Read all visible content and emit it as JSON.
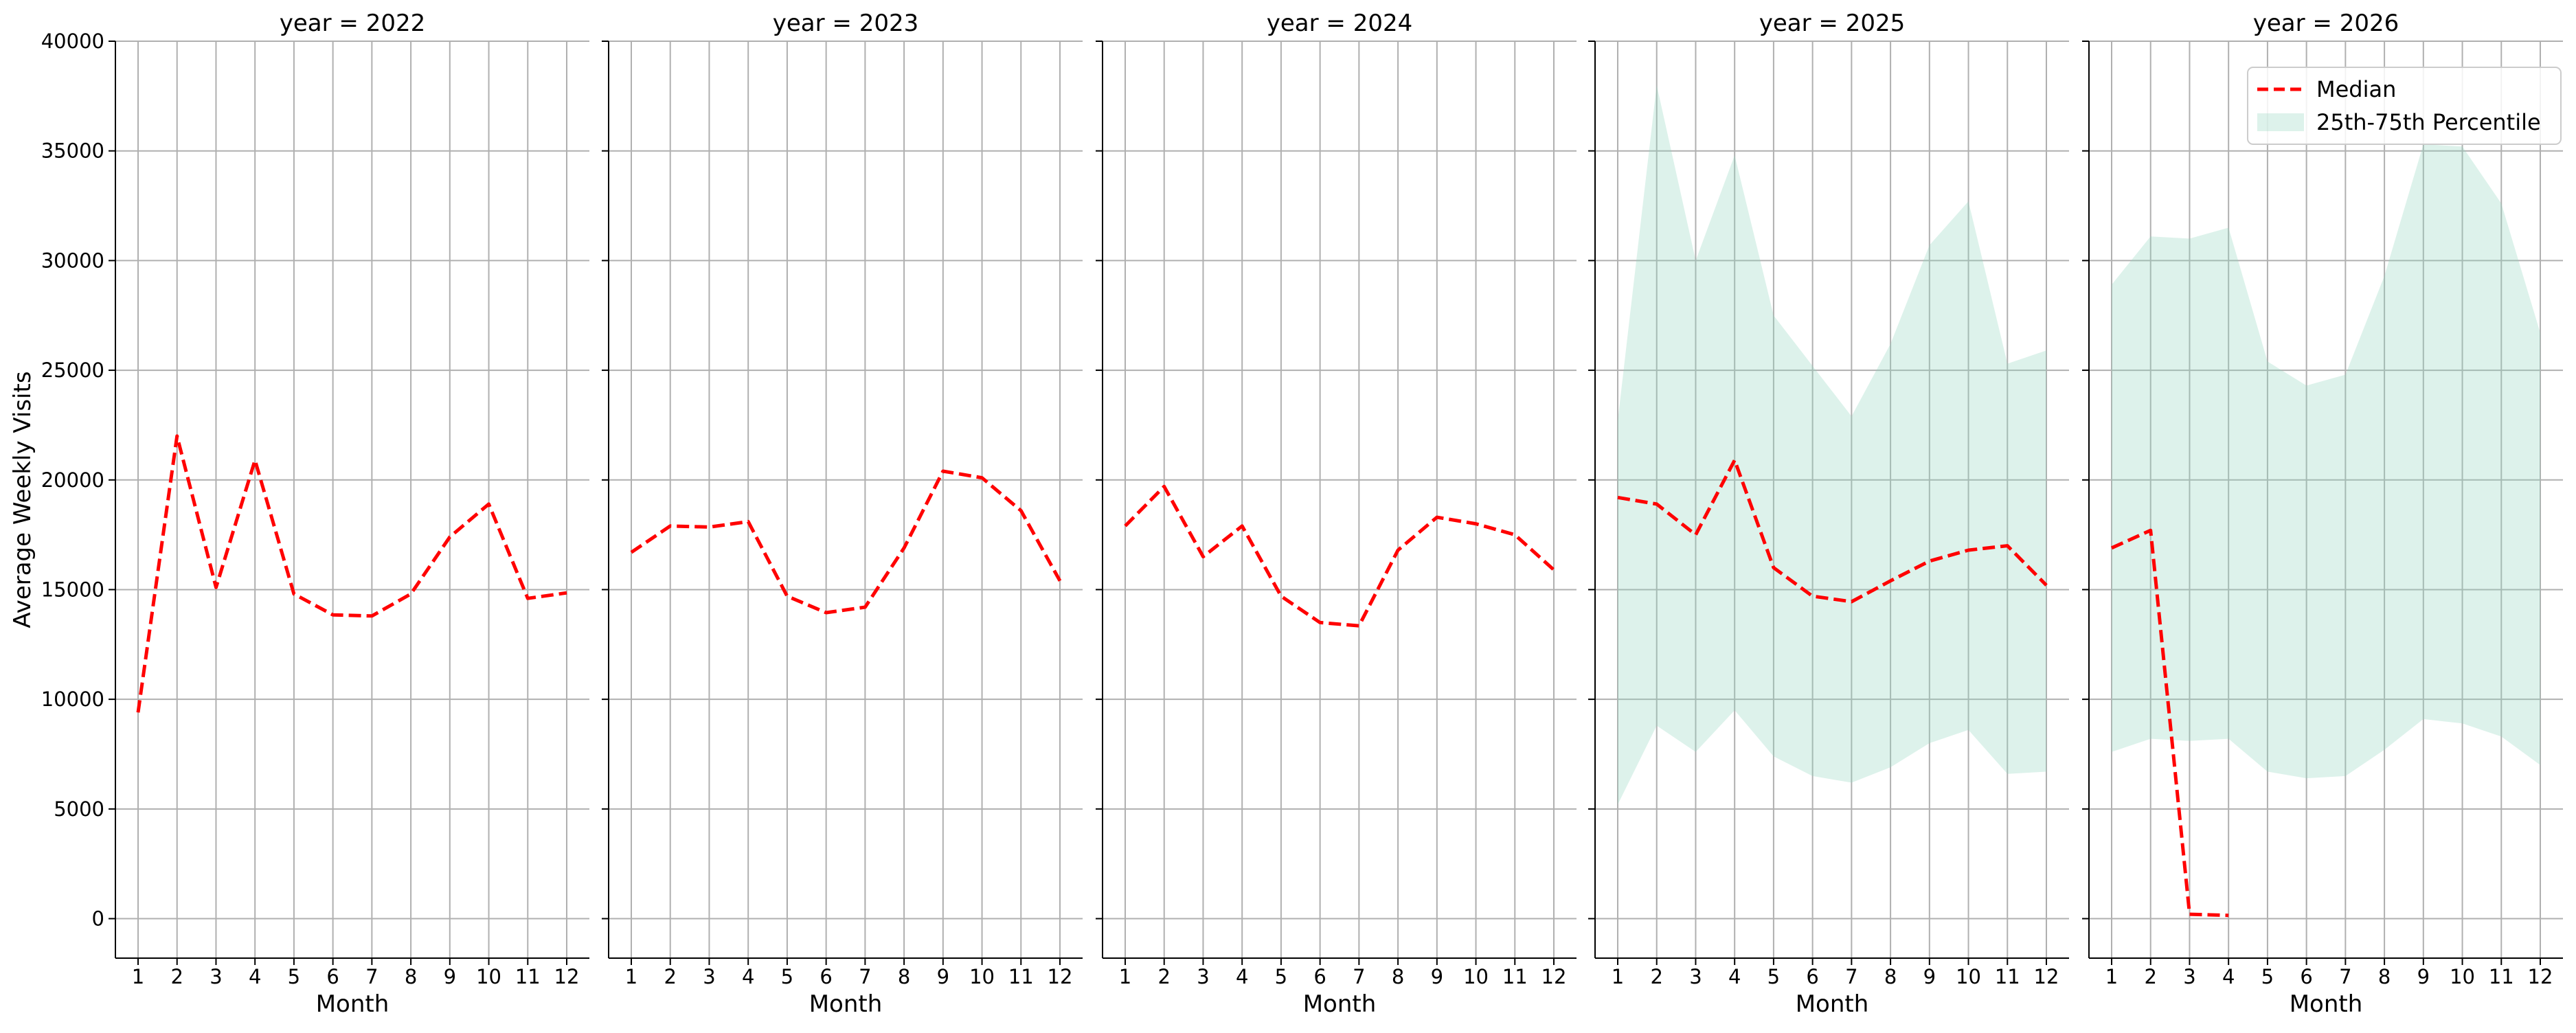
{
  "chart_data": {
    "type": "line",
    "layout": "facet-grid",
    "ylabel": "Average Weekly Visits",
    "xlabel": "Month",
    "x": [
      1,
      2,
      3,
      4,
      5,
      6,
      7,
      8,
      9,
      10,
      11,
      12
    ],
    "ylim": [
      -1800,
      40000
    ],
    "yticks": [
      0,
      5000,
      10000,
      15000,
      20000,
      25000,
      30000,
      35000,
      40000
    ],
    "grid": true,
    "shared_y": true,
    "legend": {
      "placement": "top-right of last panel",
      "entries": [
        {
          "label": "Median",
          "style": "dashed-line",
          "color": "#ff0000"
        },
        {
          "label": "25th-75th Percentile",
          "style": "band",
          "color": "#8fd3be"
        }
      ]
    },
    "panels": [
      {
        "title": "year = 2022",
        "median": [
          9400,
          22000,
          15100,
          20900,
          14800,
          13850,
          13800,
          14800,
          17400,
          18900,
          14600,
          14850
        ]
      },
      {
        "title": "year = 2023",
        "median": [
          16700,
          17900,
          17850,
          18100,
          14700,
          13950,
          14200,
          16900,
          20400,
          20100,
          18600,
          15400
        ]
      },
      {
        "title": "year = 2024",
        "median": [
          17900,
          19700,
          16500,
          17900,
          14700,
          13500,
          13350,
          16800,
          18300,
          18000,
          17500,
          15900
        ]
      },
      {
        "title": "year = 2025",
        "median": [
          19200,
          18900,
          17500,
          20900,
          16000,
          14700,
          14450,
          15400,
          16300,
          16800,
          17000,
          15200
        ],
        "p25": [
          5200,
          8800,
          7600,
          9500,
          7400,
          6500,
          6200,
          6900,
          8000,
          8600,
          6600,
          6700
        ],
        "p75": [
          22700,
          38000,
          30000,
          34800,
          27500,
          25200,
          22900,
          26200,
          30700,
          32700,
          25300,
          25900
        ]
      },
      {
        "title": "year = 2026",
        "median": [
          16900,
          17700,
          200,
          150,
          null,
          null,
          null,
          null,
          null,
          null,
          null,
          null
        ],
        "p25": [
          7600,
          8200,
          8100,
          8200,
          6700,
          6400,
          6500,
          7700,
          9100,
          8900,
          8300,
          7000
        ],
        "p75": [
          28900,
          31100,
          31000,
          31500,
          25400,
          24300,
          24800,
          29300,
          35300,
          35200,
          32600,
          26700
        ]
      }
    ]
  }
}
